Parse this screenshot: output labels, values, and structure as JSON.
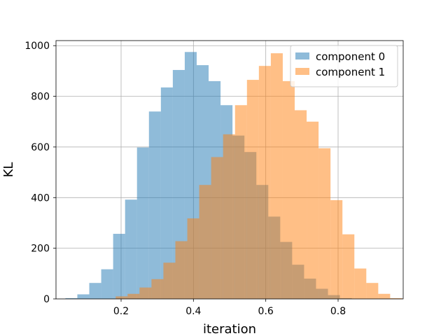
{
  "chart_data": {
    "type": "histogram",
    "xlabel": "iteration",
    "ylabel": "KL",
    "xlim": [
      0.02,
      0.98
    ],
    "ylim": [
      0,
      1020
    ],
    "xticks": [
      0.2,
      0.4,
      0.6,
      0.8
    ],
    "yticks": [
      0,
      200,
      400,
      600,
      800,
      1000
    ],
    "grid": true,
    "legend_position": "top-right",
    "series": [
      {
        "name": "component 0",
        "color": "#1f77b4",
        "alpha": 0.5,
        "bins": [
          {
            "x0": 0.046,
            "x1": 0.079,
            "count": 3
          },
          {
            "x0": 0.079,
            "x1": 0.112,
            "count": 18
          },
          {
            "x0": 0.112,
            "x1": 0.145,
            "count": 63
          },
          {
            "x0": 0.145,
            "x1": 0.178,
            "count": 117
          },
          {
            "x0": 0.178,
            "x1": 0.211,
            "count": 257
          },
          {
            "x0": 0.211,
            "x1": 0.244,
            "count": 392
          },
          {
            "x0": 0.244,
            "x1": 0.277,
            "count": 598
          },
          {
            "x0": 0.277,
            "x1": 0.31,
            "count": 740
          },
          {
            "x0": 0.31,
            "x1": 0.343,
            "count": 835
          },
          {
            "x0": 0.343,
            "x1": 0.376,
            "count": 904
          },
          {
            "x0": 0.376,
            "x1": 0.409,
            "count": 975
          },
          {
            "x0": 0.409,
            "x1": 0.442,
            "count": 923
          },
          {
            "x0": 0.442,
            "x1": 0.475,
            "count": 860
          },
          {
            "x0": 0.475,
            "x1": 0.508,
            "count": 765
          },
          {
            "x0": 0.508,
            "x1": 0.541,
            "count": 645
          },
          {
            "x0": 0.541,
            "x1": 0.574,
            "count": 580
          },
          {
            "x0": 0.574,
            "x1": 0.607,
            "count": 450
          },
          {
            "x0": 0.607,
            "x1": 0.64,
            "count": 325
          },
          {
            "x0": 0.64,
            "x1": 0.673,
            "count": 225
          },
          {
            "x0": 0.673,
            "x1": 0.706,
            "count": 135
          },
          {
            "x0": 0.706,
            "x1": 0.739,
            "count": 80
          },
          {
            "x0": 0.739,
            "x1": 0.772,
            "count": 40
          },
          {
            "x0": 0.772,
            "x1": 0.805,
            "count": 15
          },
          {
            "x0": 0.805,
            "x1": 0.838,
            "count": 3
          }
        ]
      },
      {
        "name": "component 1",
        "color": "#ff7f0e",
        "alpha": 0.5,
        "bins": [
          {
            "x0": 0.185,
            "x1": 0.218,
            "count": 10
          },
          {
            "x0": 0.218,
            "x1": 0.251,
            "count": 20
          },
          {
            "x0": 0.251,
            "x1": 0.284,
            "count": 45
          },
          {
            "x0": 0.284,
            "x1": 0.317,
            "count": 78
          },
          {
            "x0": 0.317,
            "x1": 0.35,
            "count": 143
          },
          {
            "x0": 0.35,
            "x1": 0.383,
            "count": 228
          },
          {
            "x0": 0.383,
            "x1": 0.416,
            "count": 318
          },
          {
            "x0": 0.416,
            "x1": 0.449,
            "count": 450
          },
          {
            "x0": 0.449,
            "x1": 0.482,
            "count": 560
          },
          {
            "x0": 0.482,
            "x1": 0.515,
            "count": 650
          },
          {
            "x0": 0.515,
            "x1": 0.548,
            "count": 765
          },
          {
            "x0": 0.548,
            "x1": 0.581,
            "count": 865
          },
          {
            "x0": 0.581,
            "x1": 0.614,
            "count": 920
          },
          {
            "x0": 0.614,
            "x1": 0.647,
            "count": 970
          },
          {
            "x0": 0.647,
            "x1": 0.68,
            "count": 860
          },
          {
            "x0": 0.68,
            "x1": 0.713,
            "count": 745
          },
          {
            "x0": 0.713,
            "x1": 0.746,
            "count": 700
          },
          {
            "x0": 0.746,
            "x1": 0.779,
            "count": 595
          },
          {
            "x0": 0.779,
            "x1": 0.812,
            "count": 390
          },
          {
            "x0": 0.812,
            "x1": 0.845,
            "count": 255
          },
          {
            "x0": 0.845,
            "x1": 0.878,
            "count": 120
          },
          {
            "x0": 0.878,
            "x1": 0.911,
            "count": 63
          },
          {
            "x0": 0.911,
            "x1": 0.944,
            "count": 20
          },
          {
            "x0": 0.944,
            "x1": 0.977,
            "count": 3
          }
        ]
      }
    ]
  }
}
